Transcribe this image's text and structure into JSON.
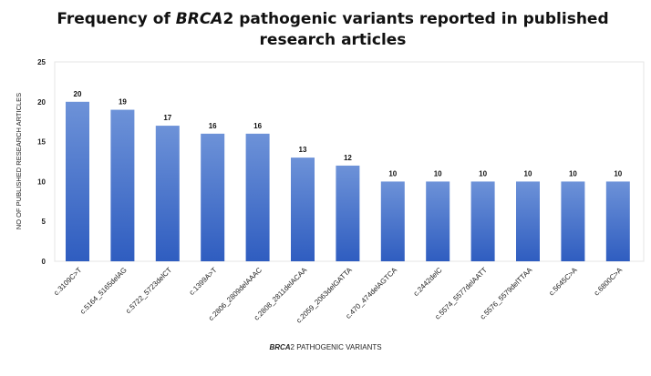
{
  "chart_data": {
    "type": "bar",
    "title_prefix": "Frequency of ",
    "title_italic": "BRCA",
    "title_suffix": "2 pathogenic variants reported in published research articles",
    "xlabel_italic": "BRCA",
    "xlabel_suffix": "2 PATHOGENIC VARIANTS",
    "ylabel": "NO OF PUBLISHED RESEARCH  ARTICLES",
    "categories": [
      "c.3109C>T",
      "c.5164_5165delAG",
      "c.5722_5723delCT",
      "c.1399A>T",
      "c.2806_2809delAAAC",
      "c.2808_2811delACAA",
      "c.2059_2063delGATTA",
      "c.470_474delAGTCA",
      "c.2442delC",
      "c.5574_5577delAATT",
      "c.5576_5579delTTAA",
      "c.5645C>A",
      "c.6800C>A"
    ],
    "values": [
      20,
      19,
      17,
      16,
      16,
      13,
      12,
      10,
      10,
      10,
      10,
      10,
      10
    ],
    "ylim": [
      0,
      25
    ],
    "yticks": [
      0,
      5,
      10,
      15,
      20,
      25
    ],
    "grid": false,
    "data_labels": true,
    "colors": {
      "bar_top": "#6d92d8",
      "bar_bottom": "#2f5dc0"
    }
  }
}
